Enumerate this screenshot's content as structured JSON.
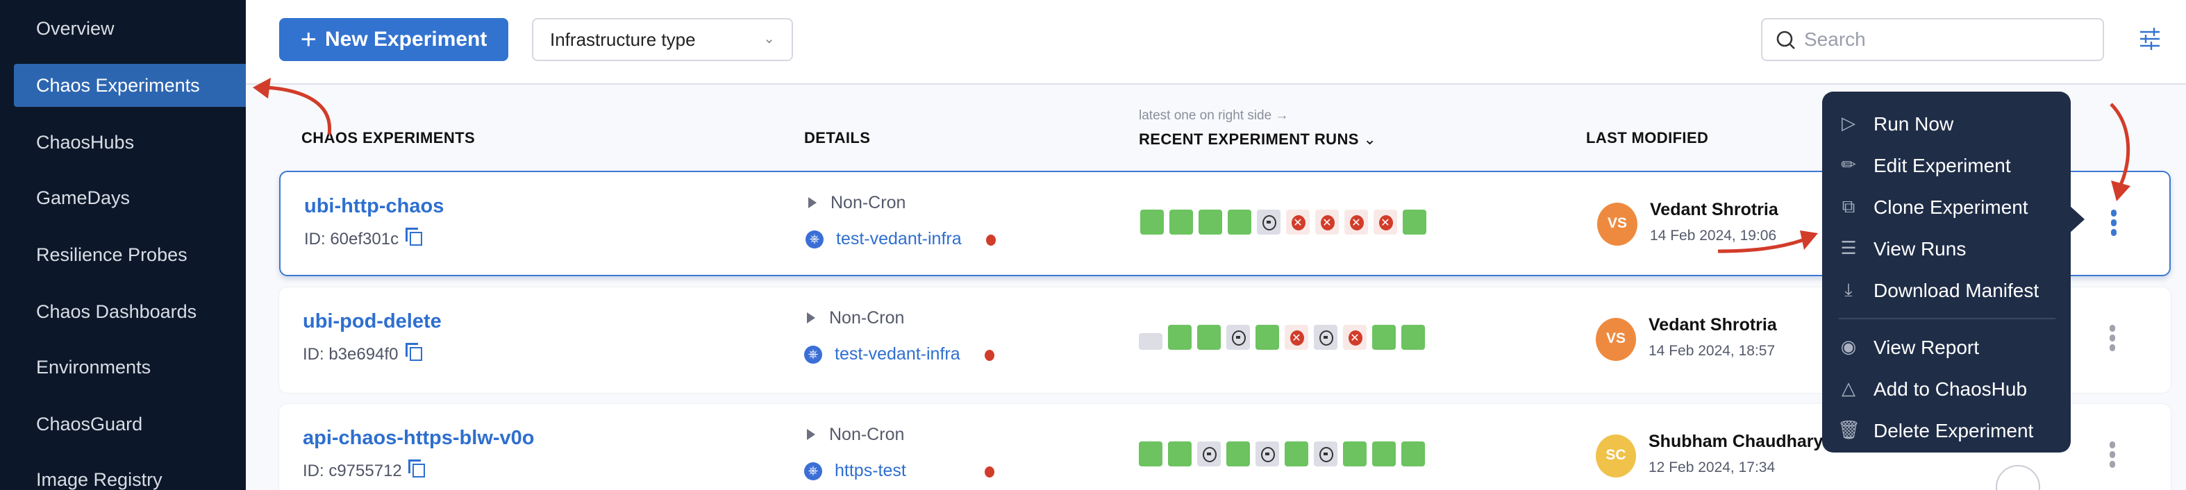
{
  "sidebar": {
    "items": [
      {
        "label": "Overview"
      },
      {
        "label": "Chaos Experiments",
        "active": true
      },
      {
        "label": "ChaosHubs"
      },
      {
        "label": "GameDays"
      },
      {
        "label": "Resilience Probes"
      },
      {
        "label": "Chaos Dashboards"
      },
      {
        "label": "Environments"
      },
      {
        "label": "ChaosGuard"
      },
      {
        "label": "Image Registry"
      }
    ]
  },
  "toolbar": {
    "new_experiment": "New Experiment",
    "infra_filter": "Infrastructure type",
    "search_placeholder": "Search"
  },
  "table": {
    "headers": {
      "experiments": "CHAOS EXPERIMENTS",
      "details": "DETAILS",
      "runs_hint": "latest one on right side →",
      "runs": "RECENT EXPERIMENT RUNS",
      "modified": "LAST MODIFIED"
    },
    "rows": [
      {
        "name": "ubi-http-chaos",
        "id": "ID: 60ef301c",
        "schedule": "Non-Cron",
        "infra": "test-vedant-infra",
        "initials": "VS",
        "avatar_color": "#ee8a3f",
        "modified_by": "Vedant Shrotria",
        "modified_at": "14 Feb 2024, 19:06",
        "runs": [
          "success",
          "success",
          "success",
          "success",
          "stopped",
          "failed",
          "failed",
          "failed",
          "failed",
          "success"
        ]
      },
      {
        "name": "ubi-pod-delete",
        "id": "ID: b3e694f0",
        "schedule": "Non-Cron",
        "infra": "test-vedant-infra",
        "initials": "VS",
        "avatar_color": "#ee8a3f",
        "modified_by": "Vedant Shrotria",
        "modified_at": "14 Feb 2024, 18:57",
        "runs": [
          "queued",
          "success",
          "success",
          "stopped",
          "success",
          "failed",
          "stopped",
          "failed",
          "success",
          "success"
        ]
      },
      {
        "name": "api-chaos-https-blw-v0o",
        "id": "ID: c9755712",
        "schedule": "Non-Cron",
        "infra": "https-test",
        "initials": "SC",
        "avatar_color": "#f0c24a",
        "modified_by": "Shubham Chaudhary",
        "modified_at": "12 Feb 2024, 17:34",
        "runs": [
          "success",
          "success",
          "stopped",
          "success",
          "stopped",
          "success",
          "stopped",
          "success",
          "success",
          "success"
        ]
      }
    ]
  },
  "context_menu": {
    "items": [
      {
        "label": "Run Now",
        "icon": "play-icon"
      },
      {
        "label": "Edit Experiment",
        "icon": "pencil-icon"
      },
      {
        "label": "Clone Experiment",
        "icon": "clone-icon"
      },
      {
        "label": "View Runs",
        "icon": "list-icon"
      },
      {
        "label": "Download Manifest",
        "icon": "download-icon"
      },
      {
        "label": "View Report",
        "icon": "eye-icon"
      },
      {
        "label": "Add to ChaosHub",
        "icon": "flask-icon"
      },
      {
        "label": "Delete Experiment",
        "icon": "trash-icon"
      }
    ]
  },
  "colors": {
    "accent": "#3373d0",
    "sidebar": "#0c1829",
    "success": "#6cc360",
    "failed": "#d23c2a",
    "menu": "#1f2d47",
    "annotation": "#d23c2a"
  }
}
